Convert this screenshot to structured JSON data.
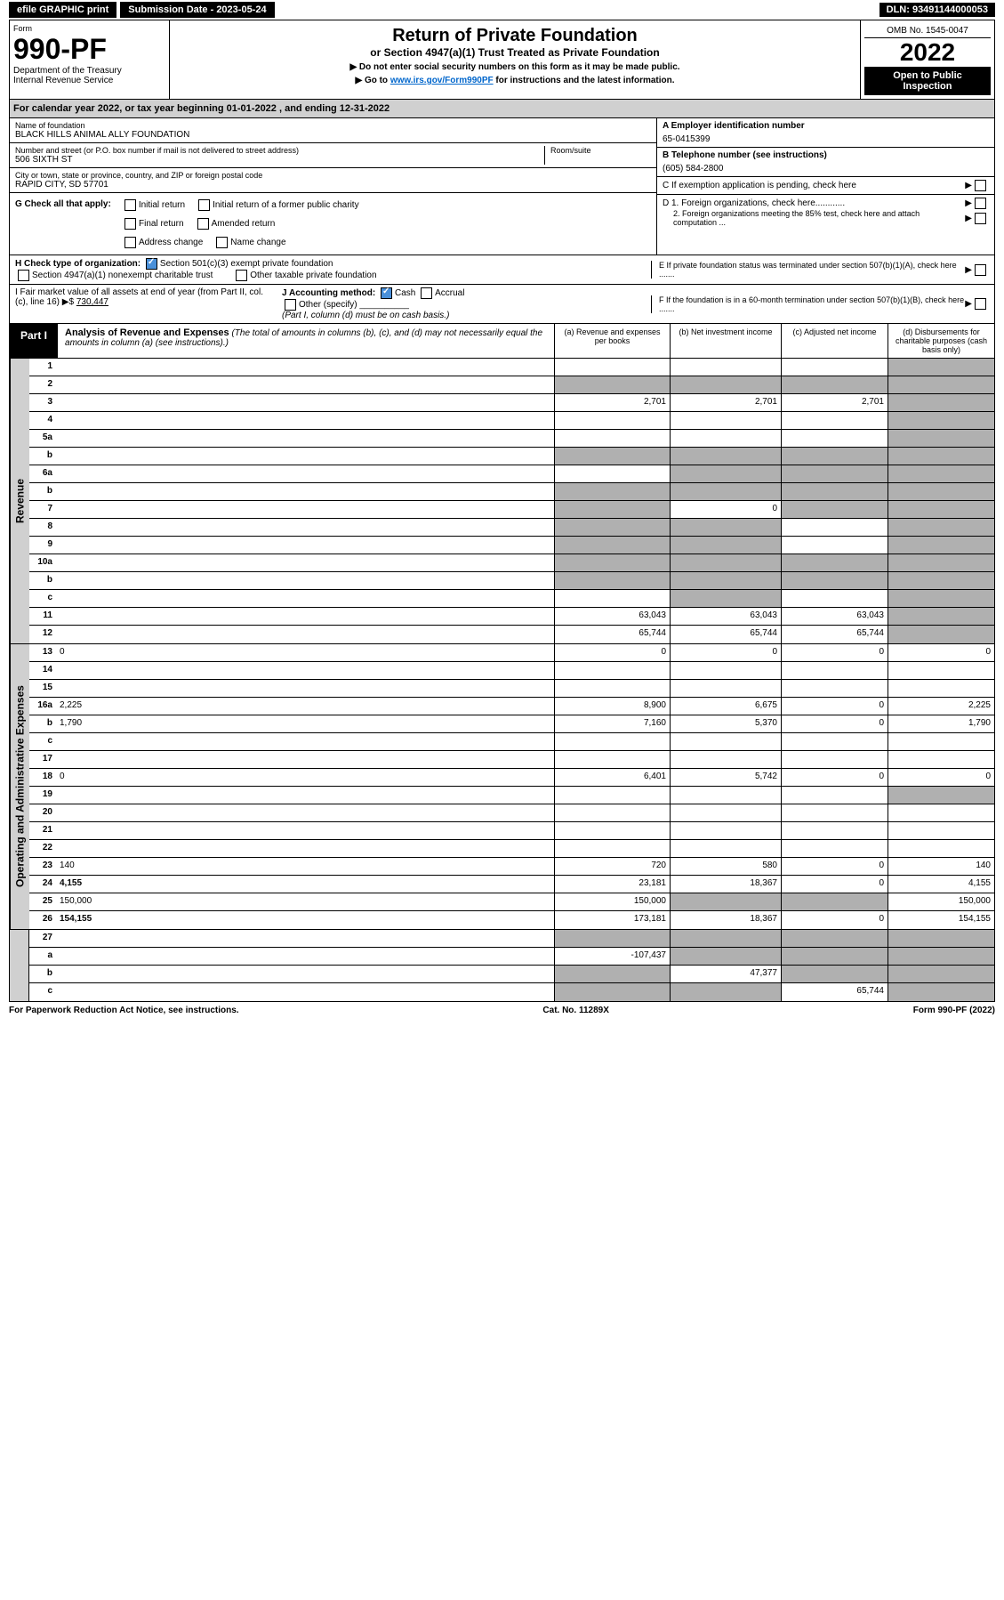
{
  "topbar": {
    "efile": "efile GRAPHIC print",
    "submission": "Submission Date - 2023-05-24",
    "dln": "DLN: 93491144000053"
  },
  "header": {
    "form_label": "Form",
    "form_num": "990-PF",
    "dept1": "Department of the Treasury",
    "dept2": "Internal Revenue Service",
    "title": "Return of Private Foundation",
    "subtitle": "or Section 4947(a)(1) Trust Treated as Private Foundation",
    "instr1": "▶ Do not enter social security numbers on this form as it may be made public.",
    "instr2_pre": "▶ Go to ",
    "instr2_link": "www.irs.gov/Form990PF",
    "instr2_post": " for instructions and the latest information.",
    "omb": "OMB No. 1545-0047",
    "year": "2022",
    "open": "Open to Public Inspection"
  },
  "calyear": "For calendar year 2022, or tax year beginning 01-01-2022                        , and ending 12-31-2022",
  "foundation": {
    "name_label": "Name of foundation",
    "name": "BLACK HILLS ANIMAL ALLY FOUNDATION",
    "addr_label": "Number and street (or P.O. box number if mail is not delivered to street address)",
    "addr": "506 SIXTH ST",
    "room_label": "Room/suite",
    "city_label": "City or town, state or province, country, and ZIP or foreign postal code",
    "city": "RAPID CITY, SD  57701",
    "ein_label": "A Employer identification number",
    "ein": "65-0415399",
    "phone_label": "B Telephone number (see instructions)",
    "phone": "(605) 584-2800",
    "c_label": "C If exemption application is pending, check here",
    "d1": "D 1. Foreign organizations, check here............",
    "d2": "2. Foreign organizations meeting the 85% test, check here and attach computation ...",
    "e_label": "E  If private foundation status was terminated under section 507(b)(1)(A), check here .......",
    "f_label": "F  If the foundation is in a 60-month termination under section 507(b)(1)(B), check here .......",
    "g_label": "G Check all that apply:",
    "g_opts": [
      "Initial return",
      "Initial return of a former public charity",
      "Final return",
      "Amended return",
      "Address change",
      "Name change"
    ],
    "h_label": "H Check type of organization:",
    "h_opt1": "Section 501(c)(3) exempt private foundation",
    "h_opt2": "Section 4947(a)(1) nonexempt charitable trust",
    "h_opt3": "Other taxable private foundation",
    "i_label": "I Fair market value of all assets at end of year (from Part II, col. (c), line 16) ▶$",
    "i_val": "730,447",
    "j_label": "J Accounting method:",
    "j_cash": "Cash",
    "j_accrual": "Accrual",
    "j_other": "Other (specify)",
    "j_note": "(Part I, column (d) must be on cash basis.)"
  },
  "part1": {
    "label": "Part I",
    "title": "Analysis of Revenue and Expenses",
    "note": "(The total of amounts in columns (b), (c), and (d) may not necessarily equal the amounts in column (a) (see instructions).)",
    "col_a": "(a)   Revenue and expenses per books",
    "col_b": "(b)   Net investment income",
    "col_c": "(c)   Adjusted net income",
    "col_d": "(d)  Disbursements for charitable purposes (cash basis only)"
  },
  "sides": {
    "revenue": "Revenue",
    "expenses": "Operating and Administrative Expenses"
  },
  "lines": [
    {
      "n": "1",
      "d": "",
      "a": "",
      "b": "",
      "c": "",
      "greyD": true
    },
    {
      "n": "2",
      "d": "",
      "a": "",
      "b": "",
      "c": "",
      "greyA": true,
      "greyB": true,
      "greyC": true,
      "greyD": true
    },
    {
      "n": "3",
      "d": "",
      "a": "2,701",
      "b": "2,701",
      "c": "2,701",
      "greyD": true
    },
    {
      "n": "4",
      "d": "",
      "a": "",
      "b": "",
      "c": "",
      "greyD": true
    },
    {
      "n": "5a",
      "d": "",
      "a": "",
      "b": "",
      "c": "",
      "greyD": true
    },
    {
      "n": "b",
      "d": "",
      "a": "",
      "b": "",
      "c": "",
      "greyA": true,
      "greyB": true,
      "greyC": true,
      "greyD": true
    },
    {
      "n": "6a",
      "d": "",
      "a": "",
      "b": "",
      "c": "",
      "greyB": true,
      "greyC": true,
      "greyD": true
    },
    {
      "n": "b",
      "d": "",
      "a": "",
      "b": "",
      "c": "",
      "greyA": true,
      "greyB": true,
      "greyC": true,
      "greyD": true
    },
    {
      "n": "7",
      "d": "",
      "a": "",
      "b": "0",
      "c": "",
      "greyA": true,
      "greyC": true,
      "greyD": true
    },
    {
      "n": "8",
      "d": "",
      "a": "",
      "b": "",
      "c": "",
      "greyA": true,
      "greyB": true,
      "greyD": true
    },
    {
      "n": "9",
      "d": "",
      "a": "",
      "b": "",
      "c": "",
      "greyA": true,
      "greyB": true,
      "greyD": true
    },
    {
      "n": "10a",
      "d": "",
      "a": "",
      "b": "",
      "c": "",
      "greyA": true,
      "greyB": true,
      "greyC": true,
      "greyD": true
    },
    {
      "n": "b",
      "d": "",
      "a": "",
      "b": "",
      "c": "",
      "greyA": true,
      "greyB": true,
      "greyC": true,
      "greyD": true
    },
    {
      "n": "c",
      "d": "",
      "a": "",
      "b": "",
      "c": "",
      "greyB": true,
      "greyD": true
    },
    {
      "n": "11",
      "d": "",
      "a": "63,043",
      "b": "63,043",
      "c": "63,043",
      "greyD": true
    },
    {
      "n": "12",
      "d": "",
      "a": "65,744",
      "b": "65,744",
      "c": "65,744",
      "bold": true,
      "greyD": true
    }
  ],
  "exp_lines": [
    {
      "n": "13",
      "d": "0",
      "a": "0",
      "b": "0",
      "c": "0"
    },
    {
      "n": "14",
      "d": "",
      "a": "",
      "b": "",
      "c": ""
    },
    {
      "n": "15",
      "d": "",
      "a": "",
      "b": "",
      "c": ""
    },
    {
      "n": "16a",
      "d": "2,225",
      "a": "8,900",
      "b": "6,675",
      "c": "0"
    },
    {
      "n": "b",
      "d": "1,790",
      "a": "7,160",
      "b": "5,370",
      "c": "0"
    },
    {
      "n": "c",
      "d": "",
      "a": "",
      "b": "",
      "c": ""
    },
    {
      "n": "17",
      "d": "",
      "a": "",
      "b": "",
      "c": ""
    },
    {
      "n": "18",
      "d": "0",
      "a": "6,401",
      "b": "5,742",
      "c": "0"
    },
    {
      "n": "19",
      "d": "",
      "a": "",
      "b": "",
      "c": "",
      "greyD": true
    },
    {
      "n": "20",
      "d": "",
      "a": "",
      "b": "",
      "c": ""
    },
    {
      "n": "21",
      "d": "",
      "a": "",
      "b": "",
      "c": ""
    },
    {
      "n": "22",
      "d": "",
      "a": "",
      "b": "",
      "c": ""
    },
    {
      "n": "23",
      "d": "140",
      "a": "720",
      "b": "580",
      "c": "0"
    },
    {
      "n": "24",
      "d": "4,155",
      "a": "23,181",
      "b": "18,367",
      "c": "0",
      "bold": true
    },
    {
      "n": "25",
      "d": "150,000",
      "a": "150,000",
      "b": "",
      "c": "",
      "greyB": true,
      "greyC": true
    },
    {
      "n": "26",
      "d": "154,155",
      "a": "173,181",
      "b": "18,367",
      "c": "0",
      "bold": true
    }
  ],
  "final_lines": [
    {
      "n": "27",
      "d": "",
      "a": "",
      "b": "",
      "c": "",
      "greyA": true,
      "greyB": true,
      "greyC": true,
      "greyD": true
    },
    {
      "n": "a",
      "d": "",
      "a": "-107,437",
      "b": "",
      "c": "",
      "bold": true,
      "greyB": true,
      "greyC": true,
      "greyD": true
    },
    {
      "n": "b",
      "d": "",
      "a": "",
      "b": "47,377",
      "c": "",
      "bold": true,
      "greyA": true,
      "greyC": true,
      "greyD": true
    },
    {
      "n": "c",
      "d": "",
      "a": "",
      "b": "",
      "c": "65,744",
      "bold": true,
      "greyA": true,
      "greyB": true,
      "greyD": true
    }
  ],
  "footer": {
    "left": "For Paperwork Reduction Act Notice, see instructions.",
    "center": "Cat. No. 11289X",
    "right": "Form 990-PF (2022)"
  }
}
